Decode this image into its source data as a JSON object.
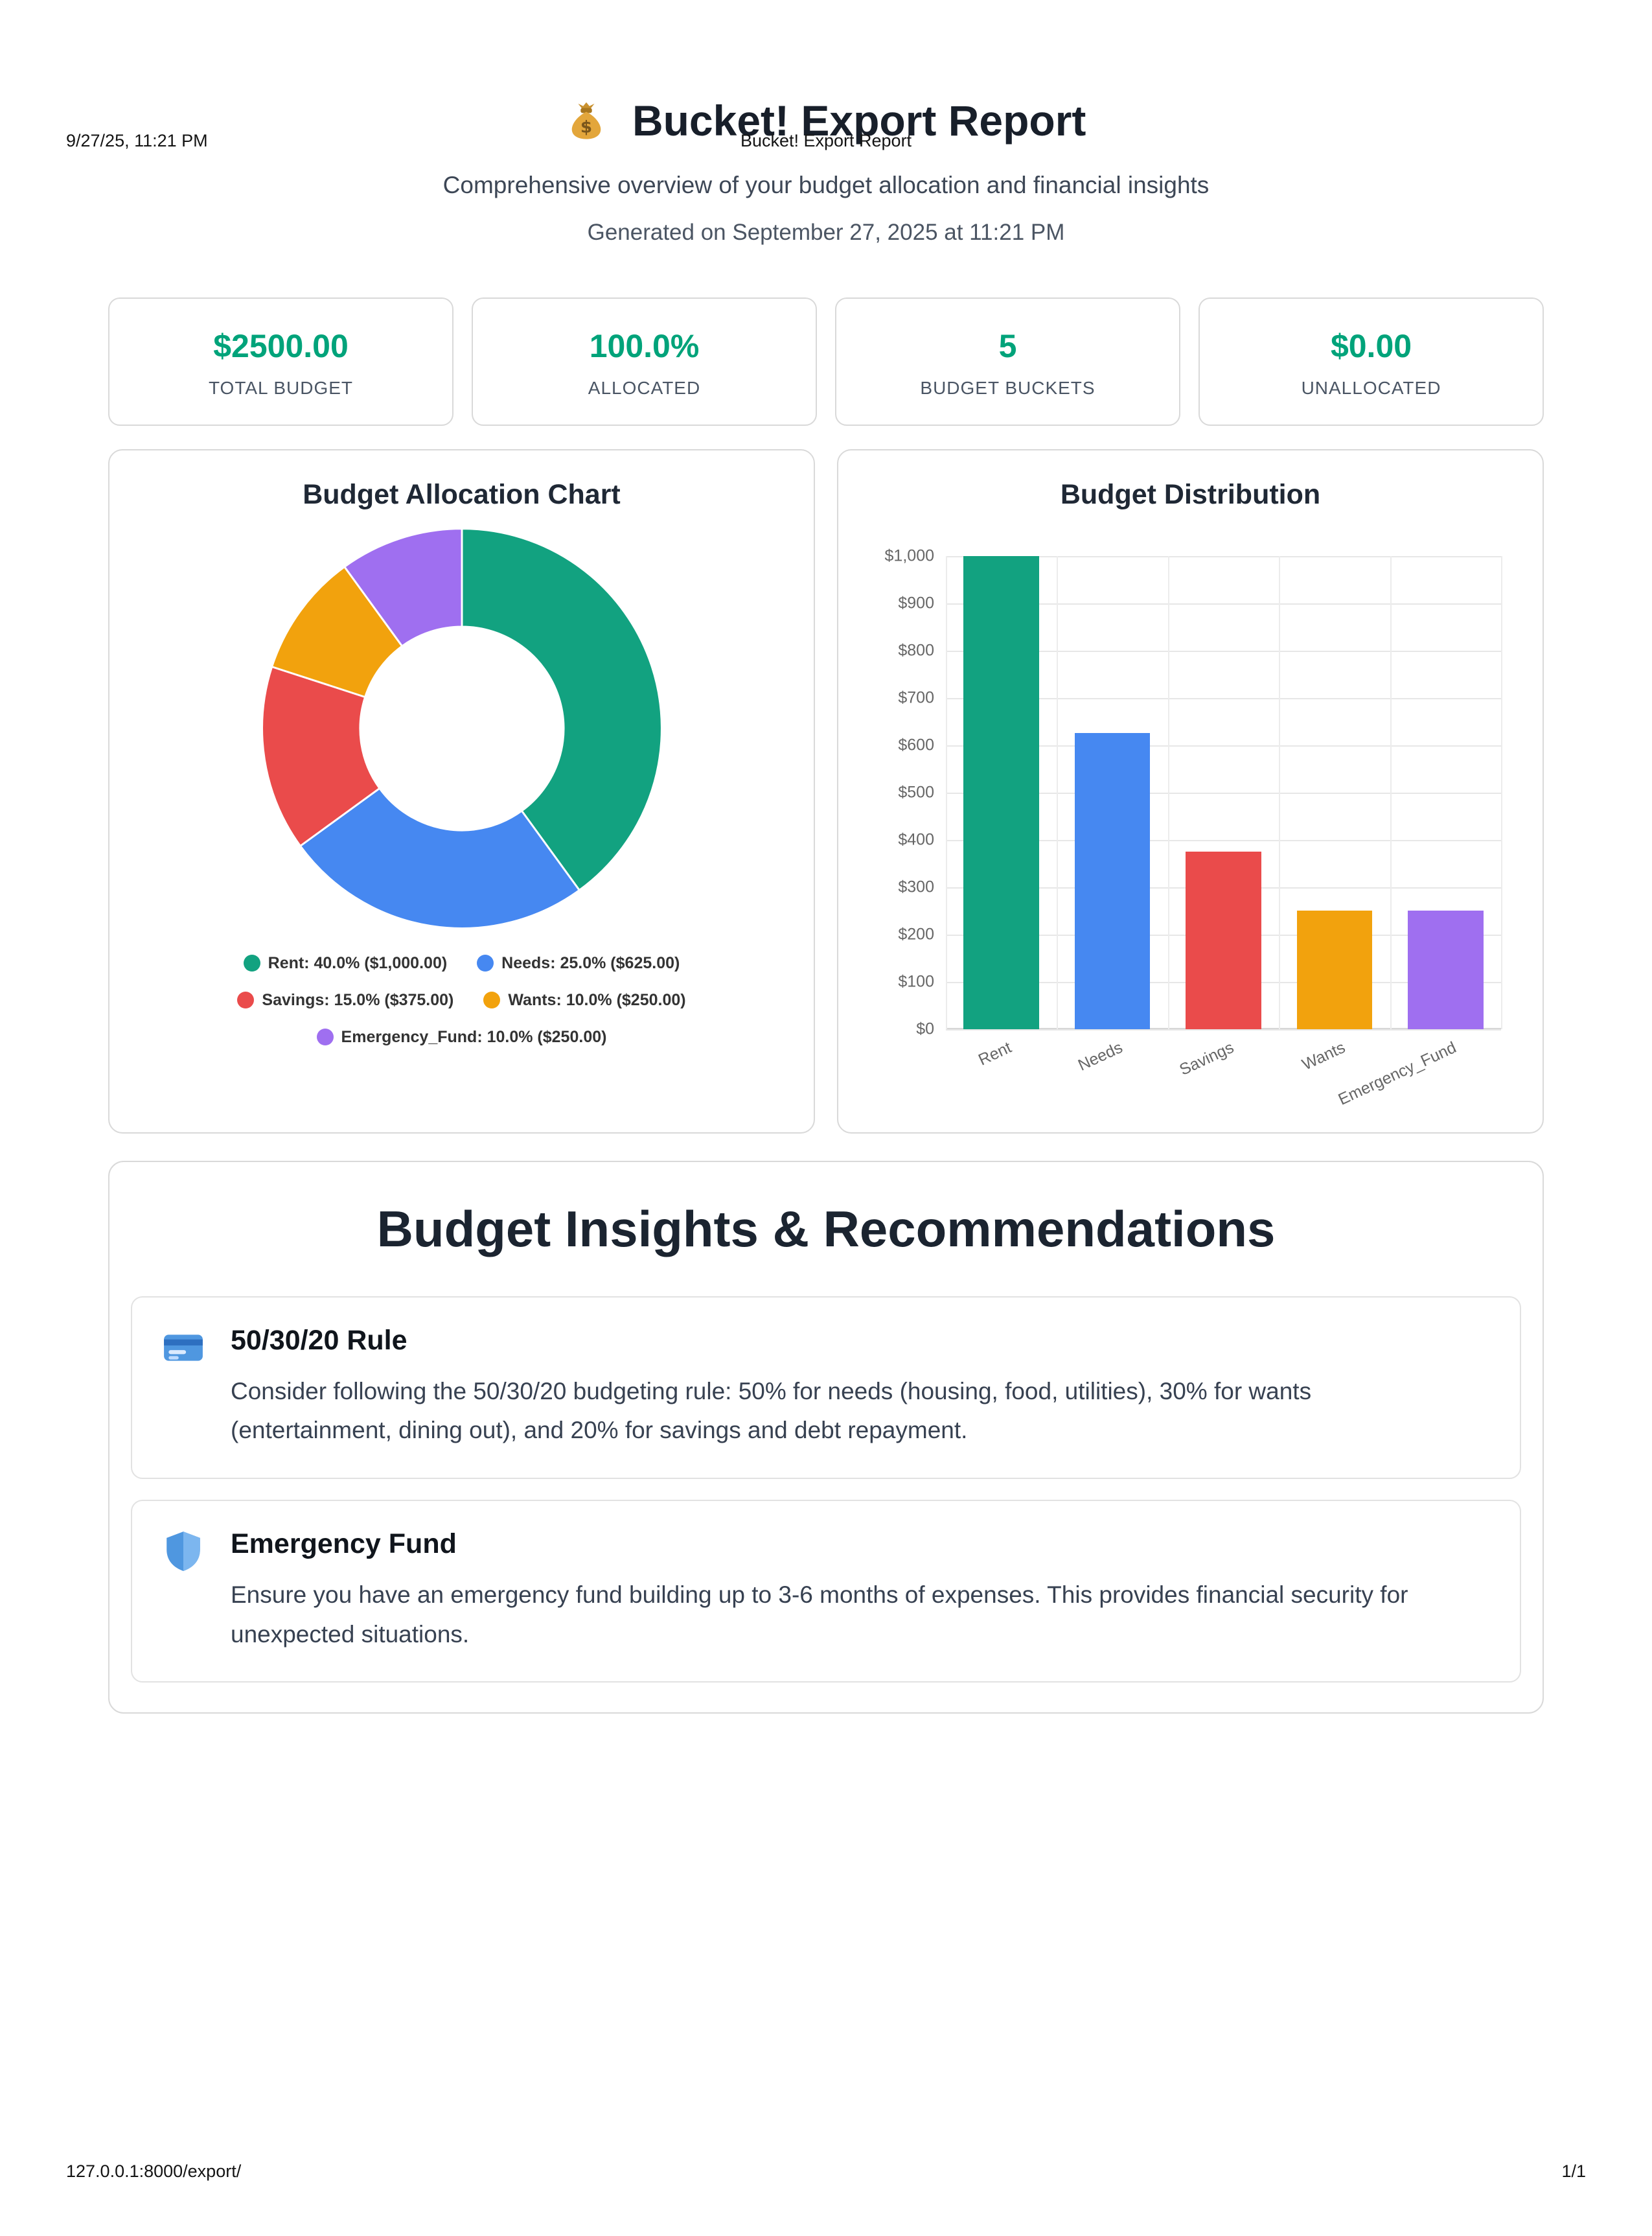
{
  "print_header": {
    "datetime": "9/27/25, 11:21 PM",
    "title": "Bucket! Export Report"
  },
  "report": {
    "icon": "money-bag-icon",
    "title": "Bucket! Export Report",
    "subtitle": "Comprehensive overview of your budget allocation and financial insights",
    "generated": "Generated on September 27, 2025 at 11:21 PM"
  },
  "stats": [
    {
      "value": "$2500.00",
      "label": "TOTAL BUDGET"
    },
    {
      "value": "100.0%",
      "label": "ALLOCATED"
    },
    {
      "value": "5",
      "label": "BUDGET BUCKETS"
    },
    {
      "value": "$0.00",
      "label": "UNALLOCATED"
    }
  ],
  "colors": {
    "accent_green": "#00a37a",
    "chart_green": "#12a280",
    "chart_blue": "#4688f1",
    "chart_red": "#ea4b4b",
    "chart_orange": "#f2a20d",
    "chart_purple": "#9f6ff0",
    "grid": "#e7e7e7"
  },
  "chart_data": [
    {
      "type": "pie",
      "subtype": "donut",
      "title": "Budget Allocation Chart",
      "labels": [
        "Rent",
        "Needs",
        "Savings",
        "Wants",
        "Emergency_Fund"
      ],
      "percents": [
        40.0,
        25.0,
        15.0,
        10.0,
        10.0
      ],
      "amounts": [
        1000.0,
        625.0,
        375.0,
        250.0,
        250.0
      ],
      "colors": [
        "#12a280",
        "#4688f1",
        "#ea4b4b",
        "#f2a20d",
        "#9f6ff0"
      ],
      "legend_labels": [
        "Rent: 40.0% ($1,000.00)",
        "Needs: 25.0% ($625.00)",
        "Savings: 15.0% ($375.00)",
        "Wants: 10.0% ($250.00)",
        "Emergency_Fund: 10.0% ($250.00)"
      ],
      "legend_position": "bottom"
    },
    {
      "type": "bar",
      "title": "Budget Distribution",
      "categories": [
        "Rent",
        "Needs",
        "Savings",
        "Wants",
        "Emergency_Fund"
      ],
      "values": [
        1000,
        625,
        375,
        250,
        250
      ],
      "colors": [
        "#12a280",
        "#4688f1",
        "#ea4b4b",
        "#f2a20d",
        "#9f6ff0"
      ],
      "ylim": [
        0,
        1000
      ],
      "ytick_step": 100,
      "ytick_labels": [
        "$0",
        "$100",
        "$200",
        "$300",
        "$400",
        "$500",
        "$600",
        "$700",
        "$800",
        "$900",
        "$1,000"
      ],
      "grid": true,
      "legend": false
    }
  ],
  "insights": {
    "title": "Budget Insights & Recommendations",
    "items": [
      {
        "icon": "credit-card-icon",
        "title": "50/30/20 Rule",
        "body": "Consider following the 50/30/20 budgeting rule: 50% for needs (housing, food, utilities), 30% for wants (entertainment, dining out), and 20% for savings and debt repayment."
      },
      {
        "icon": "shield-icon",
        "title": "Emergency Fund",
        "body": "Ensure you have an emergency fund building up to 3-6 months of expenses. This provides financial security for unexpected situations."
      }
    ]
  },
  "print_footer": {
    "url": "127.0.0.1:8000/export/",
    "page": "1/1"
  }
}
